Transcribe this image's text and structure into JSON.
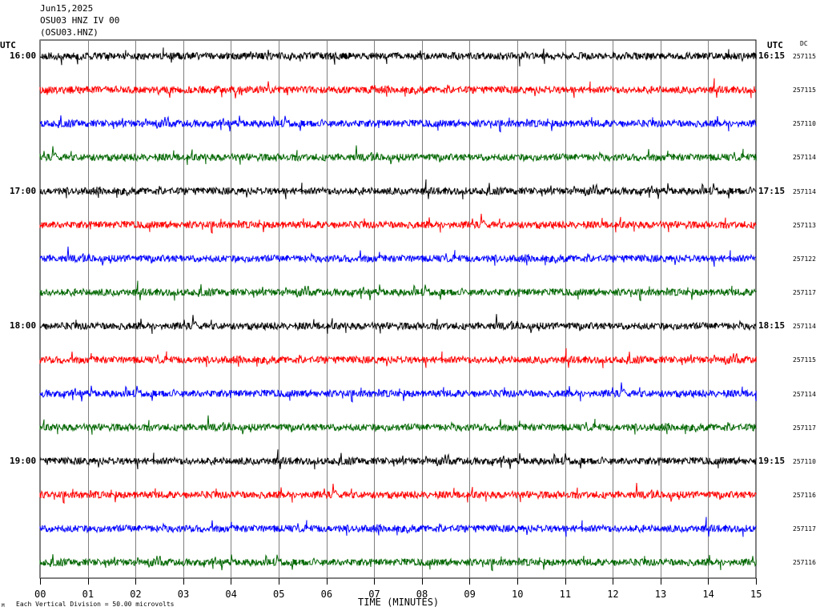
{
  "header": {
    "date": "Jun15,2025",
    "station": "OSU03 HNZ IV 00",
    "channel": "(OSU03.HNZ)"
  },
  "left_axis_title": "UTC",
  "right_axis_title": "UTC",
  "dc_title": "DC",
  "footer": {
    "scale_note": "Each Vertical Division =   50.00 microvolts",
    "corner_mark": "M"
  },
  "chart_data": {
    "type": "line",
    "title": "",
    "xlabel": "TIME (MINUTES)",
    "x_range": [
      0,
      15
    ],
    "x_ticks": [
      "00",
      "01",
      "02",
      "03",
      "04",
      "05",
      "06",
      "07",
      "08",
      "09",
      "10",
      "11",
      "12",
      "13",
      "14",
      "15"
    ],
    "grid": "vertical lines every minute",
    "trace_colors": [
      "#000000",
      "#ff0000",
      "#0000ff",
      "#006600"
    ],
    "left_time_labels": [
      "16:00",
      "17:00",
      "18:00",
      "19:00"
    ],
    "right_time_labels": [
      "16:15",
      "17:15",
      "18:15",
      "19:15"
    ],
    "traces": [
      {
        "dc": "257115"
      },
      {
        "dc": "257115"
      },
      {
        "dc": "257110"
      },
      {
        "dc": "257114"
      },
      {
        "dc": "257114"
      },
      {
        "dc": "257113"
      },
      {
        "dc": "257122"
      },
      {
        "dc": "257117"
      },
      {
        "dc": "257114"
      },
      {
        "dc": "257115"
      },
      {
        "dc": "257114"
      },
      {
        "dc": "257117"
      },
      {
        "dc": "257110"
      },
      {
        "dc": "257116"
      },
      {
        "dc": "257117"
      },
      {
        "dc": "257116"
      }
    ]
  }
}
